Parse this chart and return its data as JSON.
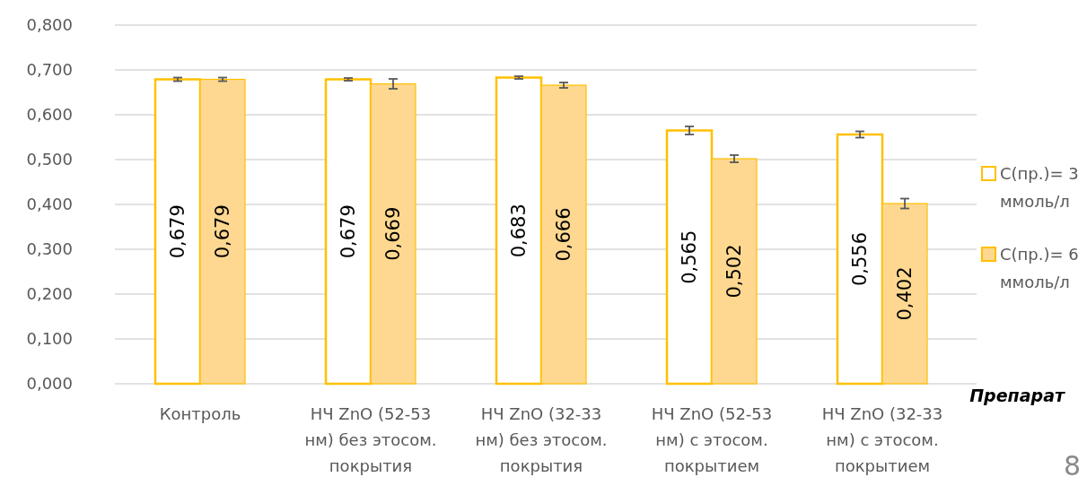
{
  "chart_data": {
    "type": "bar",
    "categories": [
      "Контроль",
      "НЧ ZnO (52-53 нм) без этосом. покрытия",
      "НЧ ZnO (32-33 нм) без этосом. покрытия",
      "НЧ ZnO (52-53 нм) с этосом. покрытием",
      "НЧ ZnO (32-33 нм) с этосом. покрытием"
    ],
    "series": [
      {
        "name": "С(пр.)= 3 ммоль/л",
        "color": "#ffffff",
        "values": [
          0.679,
          0.679,
          0.683,
          0.565,
          0.556
        ],
        "errors": [
          0.004,
          0.003,
          0.003,
          0.009,
          0.007
        ],
        "value_labels": [
          "0,679",
          "0,679",
          "0,683",
          "0,565",
          "0,556"
        ]
      },
      {
        "name": "С(пр.)= 6 ммоль/л",
        "color": "#fed890",
        "values": [
          0.679,
          0.669,
          0.666,
          0.502,
          0.402
        ],
        "errors": [
          0.004,
          0.011,
          0.006,
          0.008,
          0.011
        ],
        "value_labels": [
          "0,679",
          "0,669",
          "0,666",
          "0,502",
          "0,402"
        ]
      }
    ],
    "xlabel": "Препарат",
    "ylim": [
      0,
      0.8
    ],
    "yticks": [
      {
        "value": 0,
        "label": "0,000"
      },
      {
        "value": 0.1,
        "label": "0,100"
      },
      {
        "value": 0.2,
        "label": "0,200"
      },
      {
        "value": 0.3,
        "label": "0,300"
      },
      {
        "value": 0.4,
        "label": "0,400"
      },
      {
        "value": 0.5,
        "label": "0,500"
      },
      {
        "value": 0.6,
        "label": "0,600"
      },
      {
        "value": 0.7,
        "label": "0,700"
      },
      {
        "value": 0.8,
        "label": "0,800"
      }
    ],
    "grid": "y",
    "legend": "right",
    "annotations": [
      "8"
    ]
  }
}
